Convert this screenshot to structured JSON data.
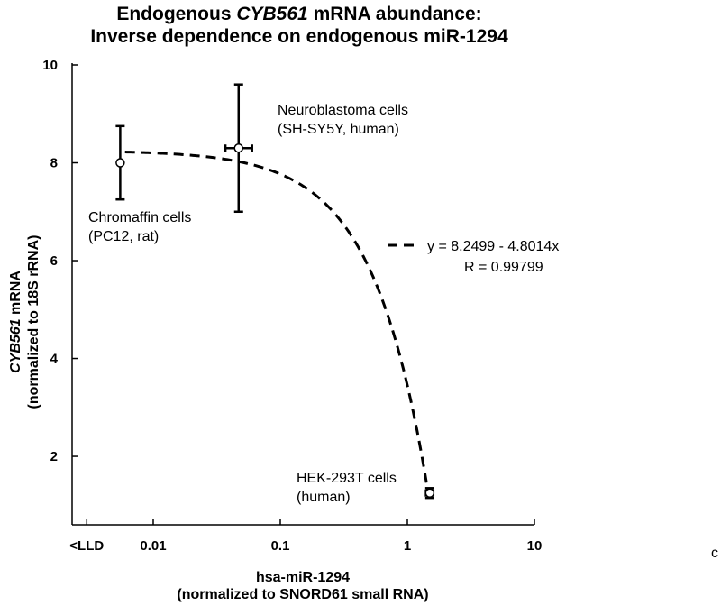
{
  "chart_data": {
    "type": "scatter",
    "title_line1_a": "Endogenous ",
    "title_line1_gene": "CYB561",
    "title_line1_b": " mRNA abundance:",
    "title_line2": "Inverse dependence on endogenous miR-1294",
    "xlabel_line1": "hsa-miR-1294",
    "xlabel_line2": "(normalized to SNORD61 small RNA)",
    "ylabel_gene": "CYB561",
    "ylabel_rest": " mRNA",
    "ylabel_line2": "(normalized to 18S rRNA)",
    "x_scale": "log",
    "xlim": [
      0.0023,
      10
    ],
    "ylim": [
      0.6,
      10
    ],
    "x_ticks": [
      {
        "value": 0.003,
        "label": "<LLD"
      },
      {
        "value": 0.01,
        "label": "0.01"
      },
      {
        "value": 0.1,
        "label": "0.1"
      },
      {
        "value": 1,
        "label": "1"
      },
      {
        "value": 10,
        "label": "10"
      }
    ],
    "y_ticks": [
      {
        "value": 2,
        "label": "2"
      },
      {
        "value": 4,
        "label": "4"
      },
      {
        "value": 6,
        "label": "6"
      },
      {
        "value": 8,
        "label": "8"
      },
      {
        "value": 10,
        "label": "10"
      }
    ],
    "grid": false,
    "points": [
      {
        "name": "chromaffin",
        "x": 0.0055,
        "y": 8.0,
        "y_err_low": 7.25,
        "y_err_high": 8.75,
        "x_err_low": null,
        "x_err_high": null,
        "label_line1": "Chromaffin cells",
        "label_line2": "(PC12, rat)"
      },
      {
        "name": "neuroblastoma",
        "x": 0.047,
        "y": 8.3,
        "y_err_low": 7.0,
        "y_err_high": 9.6,
        "x_err_low": 0.037,
        "x_err_high": 0.06,
        "label_line1": "Neuroblastoma cells",
        "label_line2": "(SH-SY5Y, human)"
      },
      {
        "name": "hek293t",
        "x": 1.5,
        "y": 1.25,
        "y_err_low": 1.15,
        "y_err_high": 1.35,
        "x_err_low": 1.4,
        "x_err_high": 1.6,
        "label_line1": "HEK-293T cells",
        "label_line2": "(human)"
      }
    ],
    "fit": {
      "equation": "y = 8.2499 - 4.8014x",
      "r_text": "R = 0.99799",
      "intercept": 8.2499,
      "slope": -4.8014,
      "x_start": 0.006,
      "x_end": 1.45
    },
    "stray_text": "c"
  }
}
